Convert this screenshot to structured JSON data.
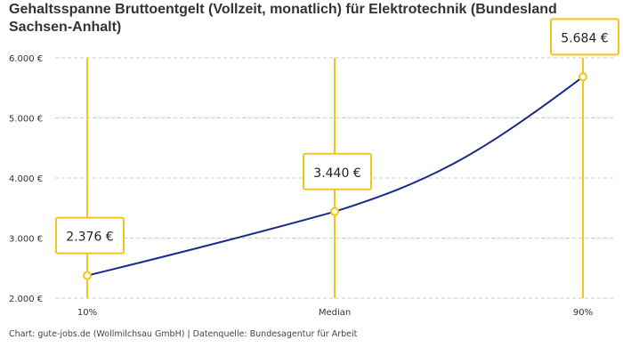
{
  "chart_data": {
    "type": "line",
    "title": "Gehaltsspanne Bruttoentgelt (Vollzeit, monatlich) für Elektrotechnik (Bundesland Sachsen-Anhalt)",
    "categories": [
      "10%",
      "Median",
      "90%"
    ],
    "values": [
      2376,
      3440,
      5684
    ],
    "data_labels": [
      "2.376 €",
      "3.440 €",
      "5.684 €"
    ],
    "yticks": [
      2000,
      3000,
      4000,
      5000,
      6000
    ],
    "ytick_labels": [
      "2.000 €",
      "3.000 €",
      "4.000 €",
      "5.000 €",
      "6.000 €"
    ],
    "ylim": [
      2000,
      6000
    ],
    "grid": "horizontal dashed",
    "colors": {
      "line": "#1a2a8c",
      "accent": "#f5c518",
      "grid": "#cccccc"
    }
  },
  "footer": "Chart: gute-jobs.de (Wollmilchsau GmbH) | Datenquelle: Bundesagentur für Arbeit"
}
